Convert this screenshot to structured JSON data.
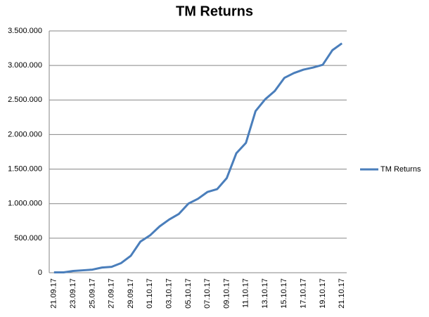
{
  "chart_data": {
    "type": "line",
    "title": "TM Returns",
    "categories": [
      "21.09.17",
      null,
      "23.09.17",
      null,
      "25.09.17",
      null,
      "27.09.17",
      null,
      "29.09.17",
      null,
      "01.10.17",
      null,
      "03.10.17",
      null,
      "05.10.17",
      null,
      "07.10.17",
      null,
      "09.10.17",
      null,
      "11.10.17",
      null,
      "13.10.17",
      null,
      "15.10.17",
      null,
      "17.10.17",
      null,
      "19.10.17",
      null,
      "21.10.17"
    ],
    "series": [
      {
        "name": "TM Returns",
        "color": "#4a7ebb",
        "values": [
          5000,
          5000,
          25000,
          35000,
          45000,
          75000,
          85000,
          140000,
          245000,
          450000,
          540000,
          670000,
          770000,
          850000,
          1000000,
          1070000,
          1170000,
          1210000,
          1370000,
          1730000,
          1880000,
          2340000,
          2510000,
          2630000,
          2820000,
          2890000,
          2940000,
          2970000,
          3010000,
          3220000,
          3320000
        ]
      }
    ],
    "ylim": [
      0,
      3500000
    ],
    "yticks": [
      0,
      {
        "value": 500000,
        "label": "500.000"
      },
      {
        "value": 1000000,
        "label": "1.000.000"
      },
      {
        "value": 1500000,
        "label": "1.500.000"
      },
      {
        "value": 2000000,
        "label": "2.000.000"
      },
      {
        "value": 2500000,
        "label": "2.500.000"
      },
      {
        "value": 3000000,
        "label": "3.000.000"
      },
      {
        "value": 3500000,
        "label": "3.500.000"
      }
    ],
    "grid": true,
    "legend": "right"
  }
}
